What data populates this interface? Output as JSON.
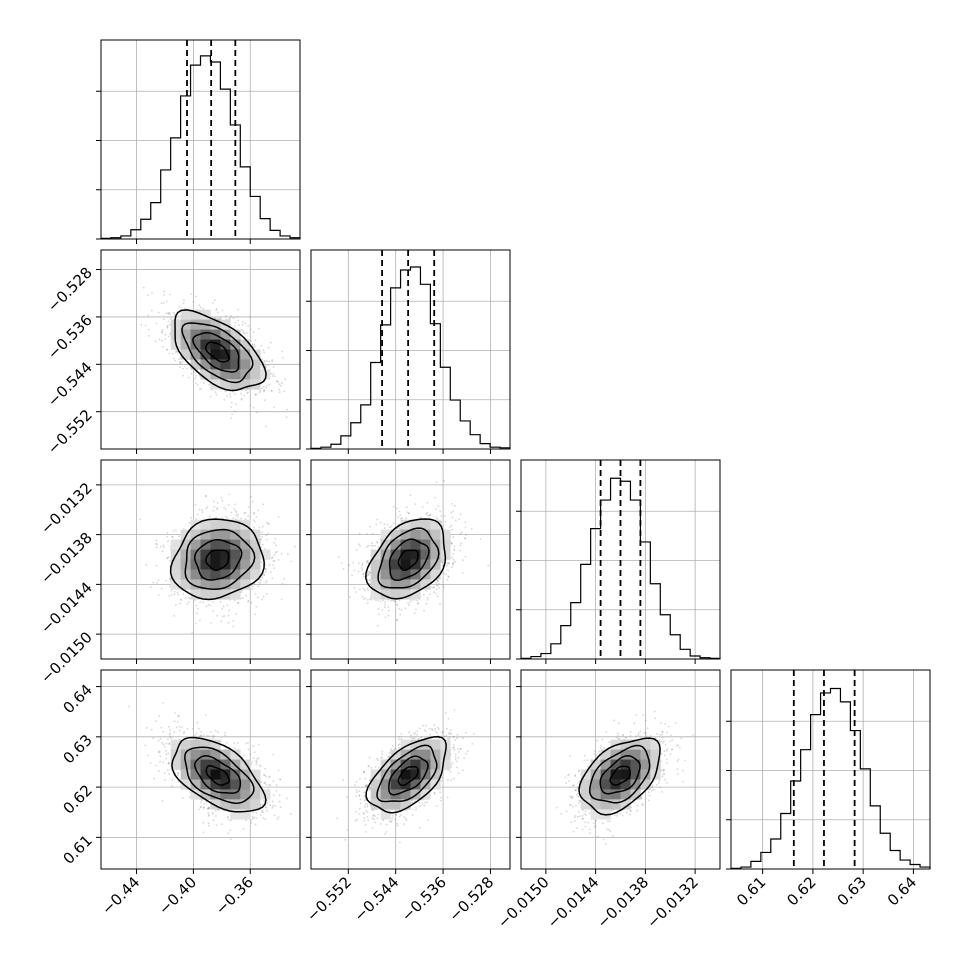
{
  "chart_data": {
    "type": "corner",
    "description_free": true,
    "params": [
      {
        "range": [
          -0.465,
          -0.325
        ],
        "mean": -0.383,
        "sd": 0.016,
        "quantiles": [
          -0.4045,
          -0.3875,
          -0.3705
        ],
        "ticks": [
          -0.44,
          -0.4,
          -0.36
        ],
        "tick_labels": [
          "−0.44",
          "−0.40",
          "−0.36"
        ],
        "hist_counts": [
          1,
          2,
          5,
          15,
          32,
          59,
          112,
          164,
          232,
          282,
          297,
          287,
          243,
          185,
          117,
          69,
          33,
          14,
          5,
          2
        ],
        "hist_max": 300
      },
      {
        "range": [
          -0.5583,
          -0.5247
        ],
        "mean": -0.5419,
        "sd": 0.0033,
        "quantiles": [
          -0.5463,
          -0.5419,
          -0.5375
        ],
        "ticks": [
          -0.552,
          -0.544,
          -0.536,
          -0.528
        ],
        "tick_labels": [
          "−0.552",
          "−0.544",
          "−0.536",
          "−0.528"
        ],
        "hist_counts": [
          1,
          3,
          8,
          22,
          44,
          74,
          145,
          208,
          270,
          300,
          305,
          276,
          210,
          137,
          82,
          47,
          24,
          9,
          3,
          2
        ],
        "hist_max": 310
      },
      {
        "range": [
          -0.0153,
          -0.0129
        ],
        "mean": -0.0141,
        "sd": 0.00024,
        "quantiles": [
          -0.01434,
          -0.0141,
          -0.01386
        ],
        "ticks": [
          -0.015,
          -0.0144,
          -0.0138,
          -0.0132
        ],
        "tick_labels": [
          "−0.0150",
          "−0.0144",
          "−0.0138",
          "−0.0132"
        ],
        "y_ticks": [
          -0.0132,
          -0.0138,
          -0.0144,
          -0.015
        ],
        "hist_counts": [
          1,
          4,
          9,
          25,
          55,
          93,
          156,
          215,
          262,
          298,
          293,
          262,
          193,
          124,
          73,
          40,
          16,
          5,
          2,
          1
        ],
        "hist_max": 305
      },
      {
        "range": [
          0.6037,
          0.6433
        ],
        "mean": 0.6223,
        "sd": 0.0037,
        "quantiles": [
          0.6162,
          0.6222,
          0.6283
        ],
        "ticks": [
          0.61,
          0.62,
          0.63,
          0.64
        ],
        "tick_labels": [
          "0.61",
          "0.62",
          "0.63",
          "0.64"
        ],
        "hist_counts": [
          1,
          3,
          12,
          26,
          47,
          87,
          138,
          187,
          242,
          276,
          283,
          262,
          217,
          157,
          99,
          56,
          29,
          14,
          7,
          3
        ],
        "hist_max": 290
      }
    ],
    "correlations": [
      [
        1.0,
        -0.55,
        0.12,
        -0.52
      ],
      [
        -0.55,
        1.0,
        0.35,
        0.55
      ],
      [
        0.12,
        0.35,
        1.0,
        0.45
      ],
      [
        -0.52,
        0.55,
        0.45,
        1.0
      ]
    ],
    "hist_bins": 20,
    "contour_levels_sigma": [
      0.5,
      1.0,
      1.5,
      2.0
    ],
    "grid": true,
    "colors": {
      "line": "#000000",
      "grid": "#b0b0b0",
      "points": "#8c8c8c",
      "density_dark": "#000000"
    }
  }
}
